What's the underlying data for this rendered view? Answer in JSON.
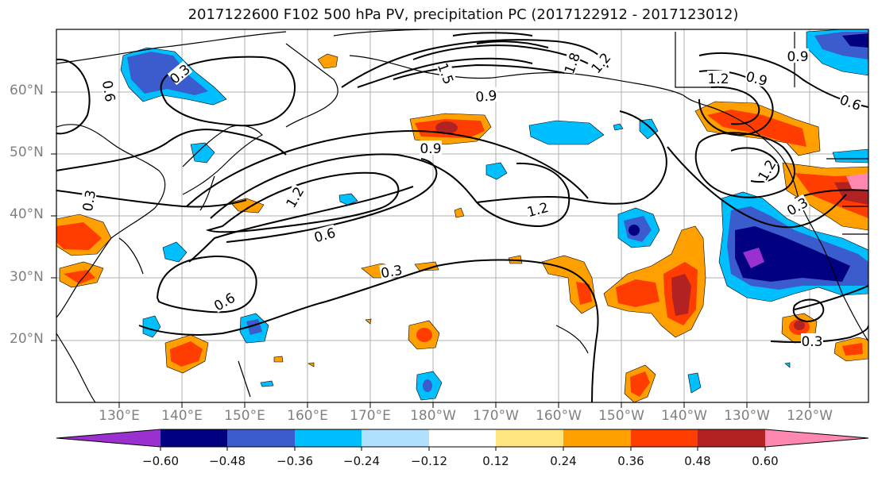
{
  "title": "2017122600 F102 500 hPa PV, precipitation PC (2017122912 - 2017123012)",
  "lat_labels": [
    "60°N",
    "50°N",
    "40°N",
    "30°N",
    "20°N"
  ],
  "lon_labels": [
    "130°E",
    "140°E",
    "150°E",
    "160°E",
    "170°E",
    "180°W",
    "170°W",
    "160°W",
    "150°W",
    "140°W",
    "130°W",
    "120°W"
  ],
  "contour_labels": [
    "0.6",
    "0.3",
    "1.5",
    "1.8",
    "1.2",
    "0.9",
    "0.9",
    "0.9",
    "1.2",
    "0.9",
    "0.6",
    "1.2",
    "1.2",
    "1.2",
    "0.6",
    "0.3",
    "0.6",
    "0.3",
    "0.3",
    "0.3"
  ],
  "colorbar": {
    "ticks": [
      "−0.60",
      "−0.48",
      "−0.36",
      "−0.24",
      "−0.12",
      "0.12",
      "0.24",
      "0.36",
      "0.48",
      "0.60"
    ],
    "colors": [
      "#9b30d0",
      "#000080",
      "#3a5ccc",
      "#00bfff",
      "#b0e2ff",
      "#ffffff",
      "#ffe680",
      "#ff9f00",
      "#ff3d00",
      "#b22222",
      "#ff88b0"
    ]
  }
}
